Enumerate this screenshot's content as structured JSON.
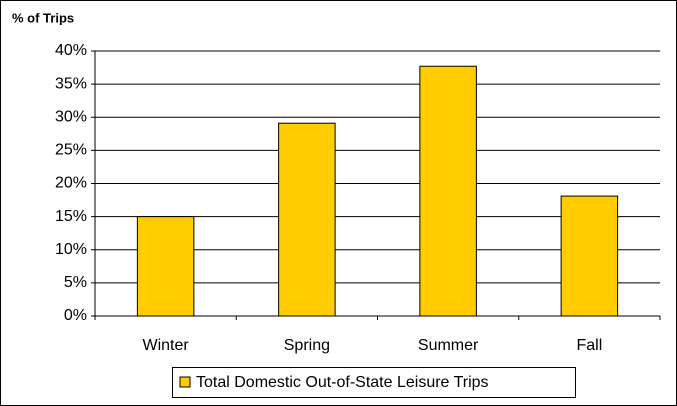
{
  "chart_data": {
    "type": "bar",
    "ylabel": "% of Trips",
    "categories": [
      "Winter",
      "Spring",
      "Summer",
      "Fall"
    ],
    "series": [
      {
        "name": "Total Domestic Out-of-State Leisure Trips",
        "color": "#ffcc00",
        "values": [
          15,
          29.1,
          37.7,
          18.1
        ]
      }
    ],
    "ylim": [
      0,
      40
    ],
    "yticks": [
      {
        "value": 0,
        "label": "0%"
      },
      {
        "value": 5,
        "label": "5%"
      },
      {
        "value": 10,
        "label": "10%"
      },
      {
        "value": 15,
        "label": "15%"
      },
      {
        "value": 20,
        "label": "20%"
      },
      {
        "value": 25,
        "label": "25%"
      },
      {
        "value": 30,
        "label": "30%"
      },
      {
        "value": 35,
        "label": "35%"
      },
      {
        "value": 40,
        "label": "40%"
      }
    ],
    "grid": true,
    "legend": "bottom"
  }
}
